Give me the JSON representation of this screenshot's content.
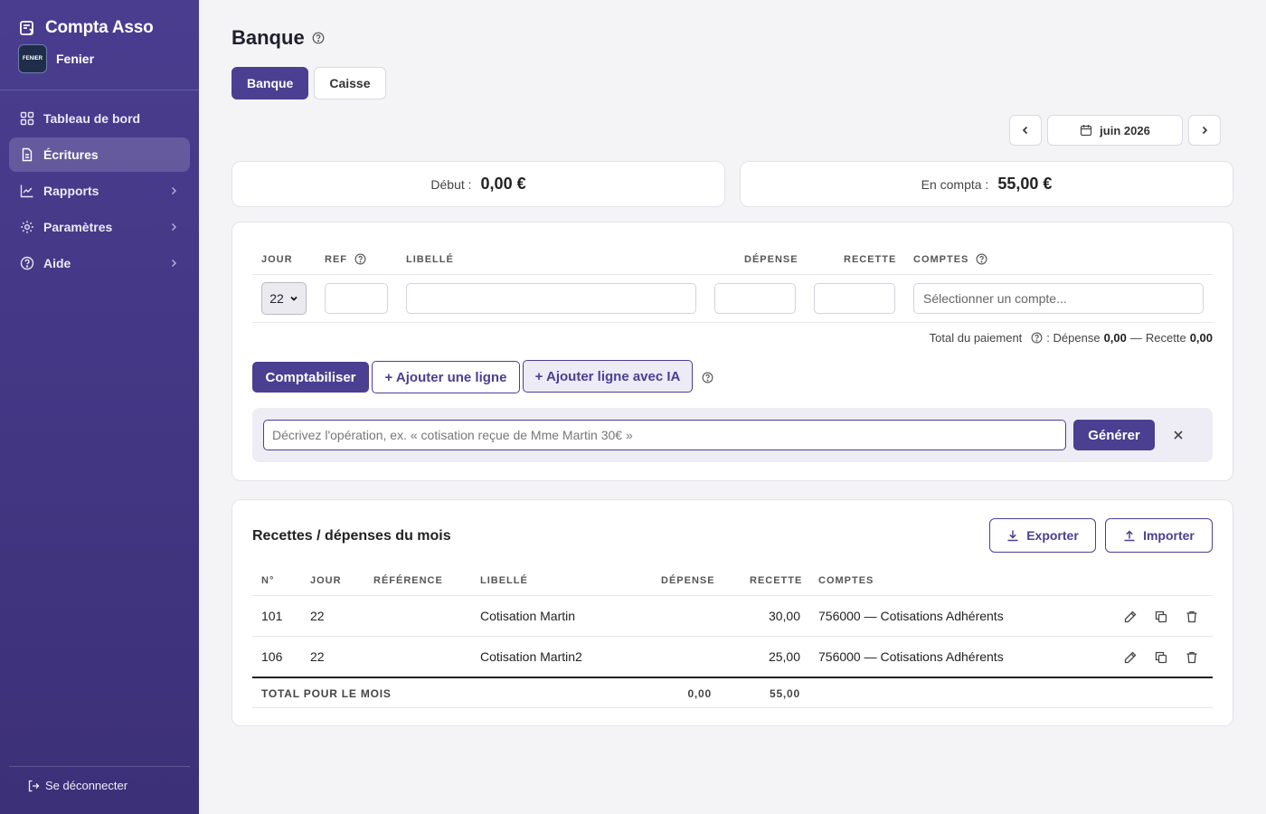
{
  "app": {
    "title": "Compta Asso",
    "org_name": "Fenier",
    "org_logo_text": "FENIER"
  },
  "nav": {
    "items": [
      {
        "label": "Tableau de bord"
      },
      {
        "label": "Écritures"
      },
      {
        "label": "Rapports"
      },
      {
        "label": "Paramètres"
      },
      {
        "label": "Aide"
      }
    ],
    "logout": "Se déconnecter"
  },
  "page": {
    "title": "Banque"
  },
  "tabs": [
    {
      "label": "Banque",
      "active": true
    },
    {
      "label": "Caisse",
      "active": false
    }
  ],
  "period": {
    "label": "juin 2026"
  },
  "balances": {
    "start_label": "Début :",
    "start_value": "0,00 €",
    "compta_label": "En compta :",
    "compta_value": "55,00 €"
  },
  "entry_form": {
    "headers": {
      "day": "JOUR",
      "ref": "REF",
      "label": "LIBELLÉ",
      "expense": "DÉPENSE",
      "income": "RECETTE",
      "accounts": "COMPTES"
    },
    "day_value": "22",
    "account_placeholder": "Sélectionner un compte...",
    "total_label": "Total du paiement",
    "total_expense_label": ": Dépense",
    "total_expense": "0,00",
    "total_sep": "—",
    "total_income_label": "Recette",
    "total_income": "0,00",
    "buttons": {
      "post": "Comptabiliser",
      "add_line": "+ Ajouter une ligne",
      "add_ai": "+ Ajouter ligne avec IA"
    },
    "ai": {
      "placeholder": "Décrivez l'opération, ex. « cotisation reçue de Mme Martin 30€ »",
      "generate": "Générer"
    }
  },
  "list": {
    "title": "Recettes / dépenses du mois",
    "export": "Exporter",
    "import": "Importer",
    "headers": {
      "num": "N°",
      "day": "JOUR",
      "ref": "RÉFÉRENCE",
      "label": "LIBELLÉ",
      "expense": "DÉPENSE",
      "income": "RECETTE",
      "accounts": "COMPTES"
    },
    "rows": [
      {
        "num": "101",
        "day": "22",
        "ref": "",
        "label": "Cotisation Martin",
        "expense": "",
        "income": "30,00",
        "account": "756000 — Cotisations Adhérents"
      },
      {
        "num": "106",
        "day": "22",
        "ref": "",
        "label": "Cotisation Martin2",
        "expense": "",
        "income": "25,00",
        "account": "756000 — Cotisations Adhérents"
      }
    ],
    "total": {
      "label": "TOTAL POUR LE MOIS",
      "expense": "0,00",
      "income": "55,00"
    }
  },
  "colors": {
    "accent": "#4b3f91",
    "sidebar": "#443887"
  }
}
